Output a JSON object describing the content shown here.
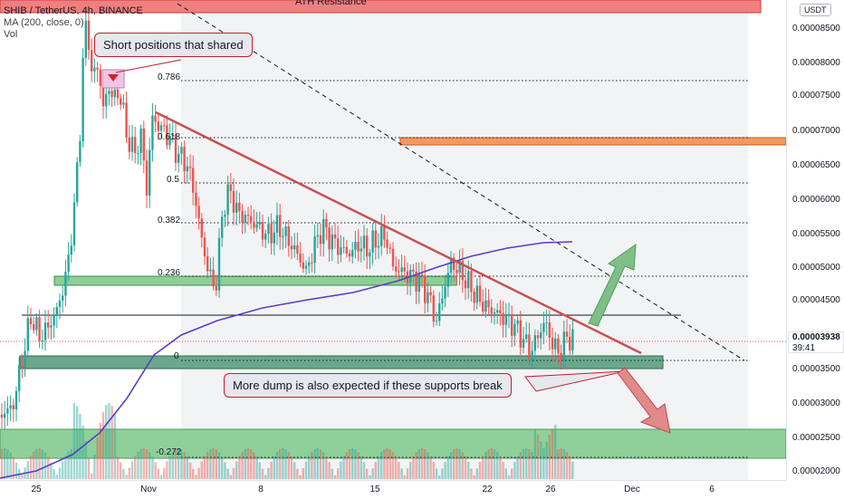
{
  "legend": {
    "symbol": "SHIB / TetherUS, 4h, BINANCE",
    "ma": "MA (200, close, 0)",
    "vol": "Vol"
  },
  "price_scale": {
    "currency": "USDT",
    "labels": [
      "0.00008500",
      "0.00008000",
      "0.00007500",
      "0.00007000",
      "0.00006500",
      "0.00006000",
      "0.00005500",
      "0.00005000",
      "0.00004500",
      "0.00003500",
      "0.00003000",
      "0.00002500",
      "0.00002000"
    ],
    "current_price": "0.00003938",
    "countdown": "39:41"
  },
  "time_scale": {
    "labels": [
      "25",
      "Nov",
      "8",
      "15",
      "22",
      "26",
      "Dec",
      "6"
    ]
  },
  "fib_levels": [
    "0.786",
    "0.618",
    "0.5",
    "0.382",
    "0.236",
    "0",
    "-0.272"
  ],
  "annotations": {
    "ath_label": "ATH Resistance",
    "short_positions": "Short positions that shared",
    "more_dump": "More dump is also expected if these supports break"
  },
  "colors": {
    "up": "#26a69a",
    "down": "#ef5350",
    "ma_line": "#5b3cc4",
    "trendline": "#c85050",
    "resistance_zone": "#ef5350",
    "support_zone": "#4caf50",
    "orange_zone": "#f08c4c"
  }
}
